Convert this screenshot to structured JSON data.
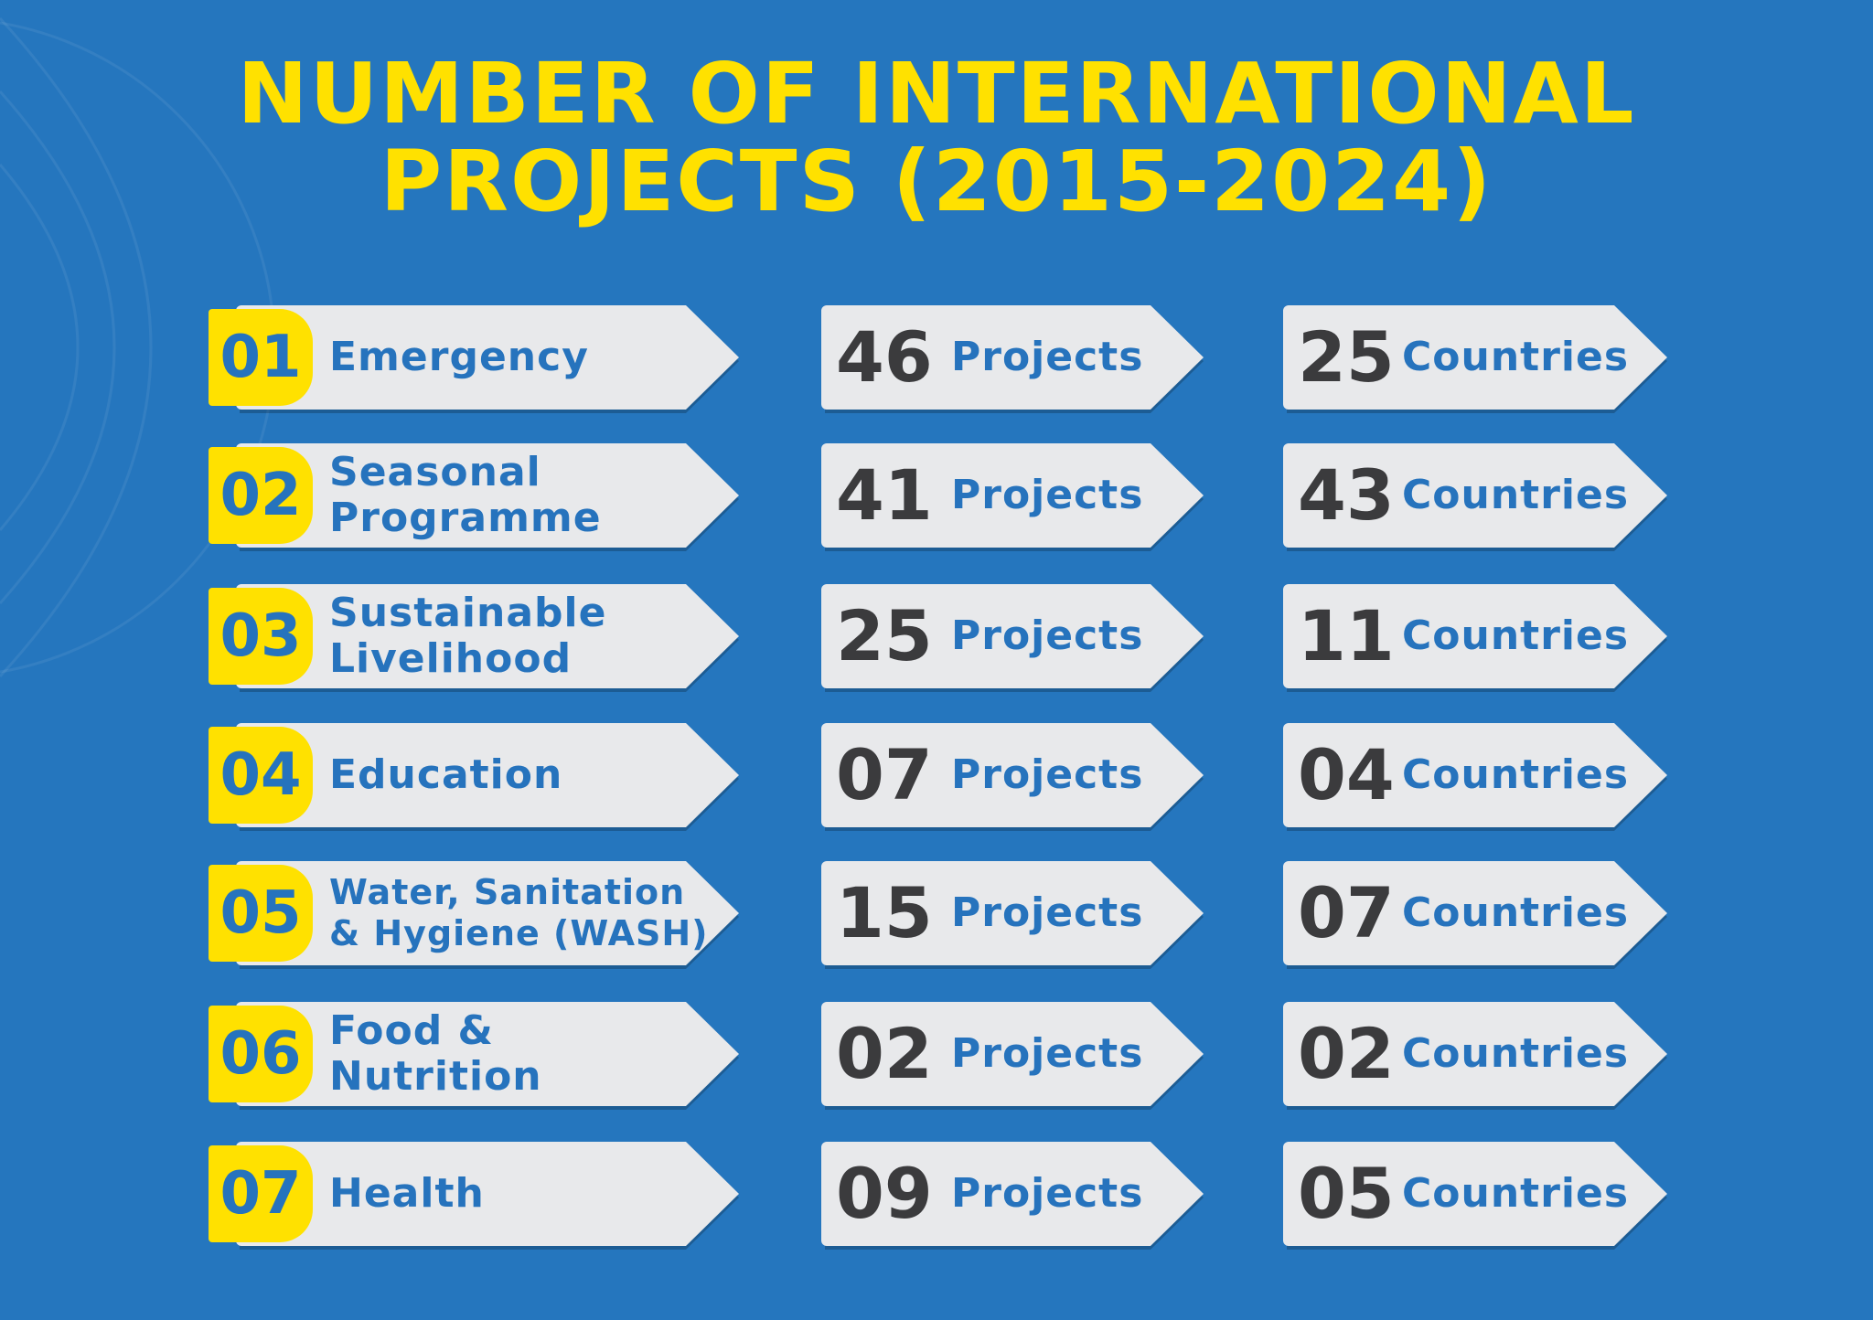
{
  "title": {
    "line1": "NUMBER OF INTERNATIONAL",
    "line2": "PROJECTS (2015-2024)"
  },
  "rows": [
    {
      "index": "01",
      "category_lines": [
        "Emergency"
      ],
      "projects": "46",
      "projects_unit": "Projects",
      "countries": "25",
      "countries_unit": "Countries"
    },
    {
      "index": "02",
      "category_lines": [
        "Seasonal",
        "Programme"
      ],
      "projects": "41",
      "projects_unit": "Projects",
      "countries": "43",
      "countries_unit": "Countries"
    },
    {
      "index": "03",
      "category_lines": [
        "Sustainable",
        "Livelihood"
      ],
      "projects": "25",
      "projects_unit": "Projects",
      "countries": "11",
      "countries_unit": "Countries"
    },
    {
      "index": "04",
      "category_lines": [
        "Education"
      ],
      "projects": "07",
      "projects_unit": "Projects",
      "countries": "04",
      "countries_unit": "Countries"
    },
    {
      "index": "05",
      "category_lines": [
        "Water, Sanitation",
        "& Hygiene (WASH)"
      ],
      "projects": "15",
      "projects_unit": "Projects",
      "countries": "07",
      "countries_unit": "Countries"
    },
    {
      "index": "06",
      "category_lines": [
        "Food &",
        "Nutrition"
      ],
      "projects": "02",
      "projects_unit": "Projects",
      "countries": "02",
      "countries_unit": "Countries"
    },
    {
      "index": "07",
      "category_lines": [
        "Health"
      ],
      "projects": "09",
      "projects_unit": "Projects",
      "countries": "05",
      "countries_unit": "Countries"
    }
  ],
  "colors": {
    "background": "#2576be",
    "accent": "#ffe100",
    "card": "#e8e9eb",
    "text_blue": "#2673bd",
    "number_dark": "#3b3b3d"
  }
}
